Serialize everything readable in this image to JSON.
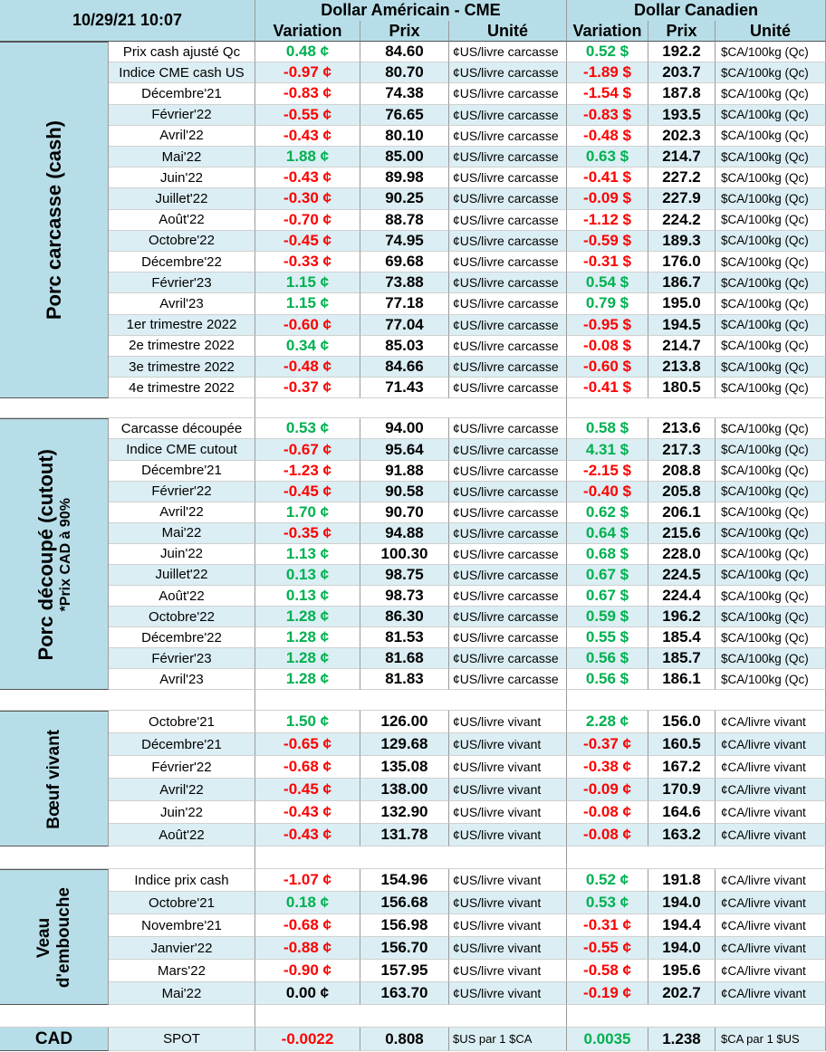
{
  "header": {
    "timestamp": "10/29/21 10:07",
    "us_title": "Dollar Américain - CME",
    "ca_title": "Dollar Canadien",
    "columns": [
      "Variation",
      "Prix",
      "Unité",
      "Variation",
      "Prix",
      "Unité"
    ]
  },
  "sections": [
    {
      "label": [
        "Porc carcasse (cash)"
      ],
      "rows": [
        [
          "Prix cash ajusté Qc",
          "0.48 ¢",
          "84.60",
          "¢US/livre carcasse",
          "0.52 $",
          "192.2",
          "$CA/100kg (Qc)"
        ],
        [
          "Indice CME cash US",
          "-0.97 ¢",
          "80.70",
          "¢US/livre carcasse",
          "-1.89 $",
          "203.7",
          "$CA/100kg (Qc)"
        ],
        [
          "Décembre'21",
          "-0.83 ¢",
          "74.38",
          "¢US/livre carcasse",
          "-1.54 $",
          "187.8",
          "$CA/100kg (Qc)"
        ],
        [
          "Février'22",
          "-0.55 ¢",
          "76.65",
          "¢US/livre carcasse",
          "-0.83 $",
          "193.5",
          "$CA/100kg (Qc)"
        ],
        [
          "Avril'22",
          "-0.43 ¢",
          "80.10",
          "¢US/livre carcasse",
          "-0.48 $",
          "202.3",
          "$CA/100kg (Qc)"
        ],
        [
          "Mai'22",
          "1.88 ¢",
          "85.00",
          "¢US/livre carcasse",
          "0.63 $",
          "214.7",
          "$CA/100kg (Qc)"
        ],
        [
          "Juin'22",
          "-0.43 ¢",
          "89.98",
          "¢US/livre carcasse",
          "-0.41 $",
          "227.2",
          "$CA/100kg (Qc)"
        ],
        [
          "Juillet'22",
          "-0.30 ¢",
          "90.25",
          "¢US/livre carcasse",
          "-0.09 $",
          "227.9",
          "$CA/100kg (Qc)"
        ],
        [
          "Août'22",
          "-0.70 ¢",
          "88.78",
          "¢US/livre carcasse",
          "-1.12 $",
          "224.2",
          "$CA/100kg (Qc)"
        ],
        [
          "Octobre'22",
          "-0.45 ¢",
          "74.95",
          "¢US/livre carcasse",
          "-0.59 $",
          "189.3",
          "$CA/100kg (Qc)"
        ],
        [
          "Décembre'22",
          "-0.33 ¢",
          "69.68",
          "¢US/livre carcasse",
          "-0.31 $",
          "176.0",
          "$CA/100kg (Qc)"
        ],
        [
          "Février'23",
          "1.15 ¢",
          "73.88",
          "¢US/livre carcasse",
          "0.54 $",
          "186.7",
          "$CA/100kg (Qc)"
        ],
        [
          "Avril'23",
          "1.15 ¢",
          "77.18",
          "¢US/livre carcasse",
          "0.79 $",
          "195.0",
          "$CA/100kg (Qc)"
        ],
        [
          "1er trimestre 2022",
          "-0.60 ¢",
          "77.04",
          "¢US/livre carcasse",
          "-0.95 $",
          "194.5",
          "$CA/100kg (Qc)"
        ],
        [
          "2e trimestre 2022",
          "0.34 ¢",
          "85.03",
          "¢US/livre carcasse",
          "-0.08 $",
          "214.7",
          "$CA/100kg (Qc)"
        ],
        [
          "3e trimestre 2022",
          "-0.48 ¢",
          "84.66",
          "¢US/livre carcasse",
          "-0.60 $",
          "213.8",
          "$CA/100kg (Qc)"
        ],
        [
          "4e trimestre 2022",
          "-0.37 ¢",
          "71.43",
          "¢US/livre carcasse",
          "-0.41 $",
          "180.5",
          "$CA/100kg (Qc)"
        ]
      ]
    },
    {
      "label": [
        "Porc découpé (cutout)",
        "*Prix CAD à 90%"
      ],
      "rows": [
        [
          "Carcasse découpée",
          "0.53 ¢",
          "94.00",
          "¢US/livre carcasse",
          "0.58 $",
          "213.6",
          "$CA/100kg (Qc)"
        ],
        [
          "Indice CME cutout",
          "-0.67 ¢",
          "95.64",
          "¢US/livre carcasse",
          "4.31 $",
          "217.3",
          "$CA/100kg (Qc)"
        ],
        [
          "Décembre'21",
          "-1.23 ¢",
          "91.88",
          "¢US/livre carcasse",
          "-2.15 $",
          "208.8",
          "$CA/100kg (Qc)"
        ],
        [
          "Février'22",
          "-0.45 ¢",
          "90.58",
          "¢US/livre carcasse",
          "-0.40 $",
          "205.8",
          "$CA/100kg (Qc)"
        ],
        [
          "Avril'22",
          "1.70 ¢",
          "90.70",
          "¢US/livre carcasse",
          "0.62 $",
          "206.1",
          "$CA/100kg (Qc)"
        ],
        [
          "Mai'22",
          "-0.35 ¢",
          "94.88",
          "¢US/livre carcasse",
          "0.64 $",
          "215.6",
          "$CA/100kg (Qc)"
        ],
        [
          "Juin'22",
          "1.13 ¢",
          "100.30",
          "¢US/livre carcasse",
          "0.68 $",
          "228.0",
          "$CA/100kg (Qc)"
        ],
        [
          "Juillet'22",
          "0.13 ¢",
          "98.75",
          "¢US/livre carcasse",
          "0.67 $",
          "224.5",
          "$CA/100kg (Qc)"
        ],
        [
          "Août'22",
          "0.13 ¢",
          "98.73",
          "¢US/livre carcasse",
          "0.67 $",
          "224.4",
          "$CA/100kg (Qc)"
        ],
        [
          "Octobre'22",
          "1.28 ¢",
          "86.30",
          "¢US/livre carcasse",
          "0.59 $",
          "196.2",
          "$CA/100kg (Qc)"
        ],
        [
          "Décembre'22",
          "1.28 ¢",
          "81.53",
          "¢US/livre carcasse",
          "0.55 $",
          "185.4",
          "$CA/100kg (Qc)"
        ],
        [
          "Février'23",
          "1.28 ¢",
          "81.68",
          "¢US/livre carcasse",
          "0.56 $",
          "185.7",
          "$CA/100kg (Qc)"
        ],
        [
          "Avril'23",
          "1.28 ¢",
          "81.83",
          "¢US/livre carcasse",
          "0.56 $",
          "186.1",
          "$CA/100kg (Qc)"
        ]
      ]
    },
    {
      "label": [
        "Bœuf vivant"
      ],
      "rows": [
        [
          "Octobre'21",
          "1.50 ¢",
          "126.00",
          "¢US/livre vivant",
          "2.28 ¢",
          "156.0",
          "¢CA/livre vivant"
        ],
        [
          "Décembre'21",
          "-0.65 ¢",
          "129.68",
          "¢US/livre vivant",
          "-0.37 ¢",
          "160.5",
          "¢CA/livre vivant"
        ],
        [
          "Février'22",
          "-0.68 ¢",
          "135.08",
          "¢US/livre vivant",
          "-0.38 ¢",
          "167.2",
          "¢CA/livre vivant"
        ],
        [
          "Avril'22",
          "-0.45 ¢",
          "138.00",
          "¢US/livre vivant",
          "-0.09 ¢",
          "170.9",
          "¢CA/livre vivant"
        ],
        [
          "Juin'22",
          "-0.43 ¢",
          "132.90",
          "¢US/livre vivant",
          "-0.08 ¢",
          "164.6",
          "¢CA/livre vivant"
        ],
        [
          "Août'22",
          "-0.43 ¢",
          "131.78",
          "¢US/livre vivant",
          "-0.08 ¢",
          "163.2",
          "¢CA/livre vivant"
        ]
      ]
    },
    {
      "label": [
        "Veau",
        "d'embouche"
      ],
      "rows": [
        [
          "Indice prix cash",
          "-1.07 ¢",
          "154.96",
          "¢US/livre vivant",
          "0.52 ¢",
          "191.8",
          "¢CA/livre vivant"
        ],
        [
          "Octobre'21",
          "0.18 ¢",
          "156.68",
          "¢US/livre vivant",
          "0.53 ¢",
          "194.0",
          "¢CA/livre vivant"
        ],
        [
          "Novembre'21",
          "-0.68 ¢",
          "156.98",
          "¢US/livre vivant",
          "-0.31 ¢",
          "194.4",
          "¢CA/livre vivant"
        ],
        [
          "Janvier'22",
          "-0.88 ¢",
          "156.70",
          "¢US/livre vivant",
          "-0.55 ¢",
          "194.0",
          "¢CA/livre vivant"
        ],
        [
          "Mars'22",
          "-0.90 ¢",
          "157.95",
          "¢US/livre vivant",
          "-0.58 ¢",
          "195.6",
          "¢CA/livre vivant"
        ],
        [
          "Mai'22",
          "0.00 ¢",
          "163.70",
          "¢US/livre vivant",
          "-0.19 ¢",
          "202.7",
          "¢CA/livre vivant"
        ]
      ]
    }
  ],
  "cad": {
    "label": "CAD",
    "row": [
      "SPOT",
      "-0.0022",
      "0.808",
      "$US par 1 $CA",
      "0.0035",
      "1.238",
      "$CA par 1 $US"
    ]
  }
}
